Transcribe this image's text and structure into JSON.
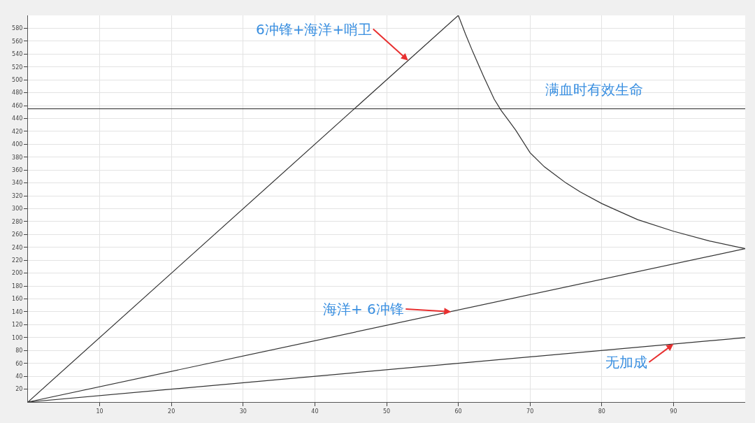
{
  "chart_data": {
    "type": "line",
    "xlim": [
      0,
      100
    ],
    "ylim": [
      0,
      600
    ],
    "xticks": [
      10,
      20,
      30,
      40,
      50,
      60,
      70,
      80,
      90
    ],
    "yticks": [
      20,
      40,
      60,
      80,
      100,
      120,
      140,
      160,
      180,
      200,
      220,
      240,
      260,
      280,
      300,
      320,
      340,
      360,
      380,
      400,
      420,
      440,
      460,
      480,
      500,
      520,
      540,
      560,
      580
    ],
    "grid": true,
    "marker": "none",
    "line_style": "solid",
    "series": [
      {
        "color": "#333333",
        "x": [
          0,
          60,
          61,
          62,
          63.5,
          65,
          66,
          67,
          68,
          70,
          72,
          75,
          77,
          80,
          82,
          85,
          90,
          95,
          100
        ],
        "values": [
          0,
          600,
          571,
          544,
          506,
          470,
          452,
          437,
          422,
          387,
          365,
          340,
          326,
          308,
          298,
          283,
          265,
          250,
          238
        ]
      },
      {
        "color": "#333333",
        "x": [
          0,
          100
        ],
        "values": [
          0,
          238
        ]
      },
      {
        "color": "#333333",
        "x": [
          0,
          100
        ],
        "values": [
          0,
          100
        ]
      }
    ],
    "ref_lines": [
      {
        "axis": "y",
        "value": 455,
        "label": "满血时有效生命",
        "color": "#222222"
      }
    ],
    "annotations": [
      {
        "text": "6冲锋+海洋+哨卫",
        "x": 53,
        "y": 530
      },
      {
        "text": "海洋+ 6冲锋",
        "x": 59,
        "y": 140
      },
      {
        "text": "无加成",
        "x": 90,
        "y": 90
      }
    ]
  }
}
